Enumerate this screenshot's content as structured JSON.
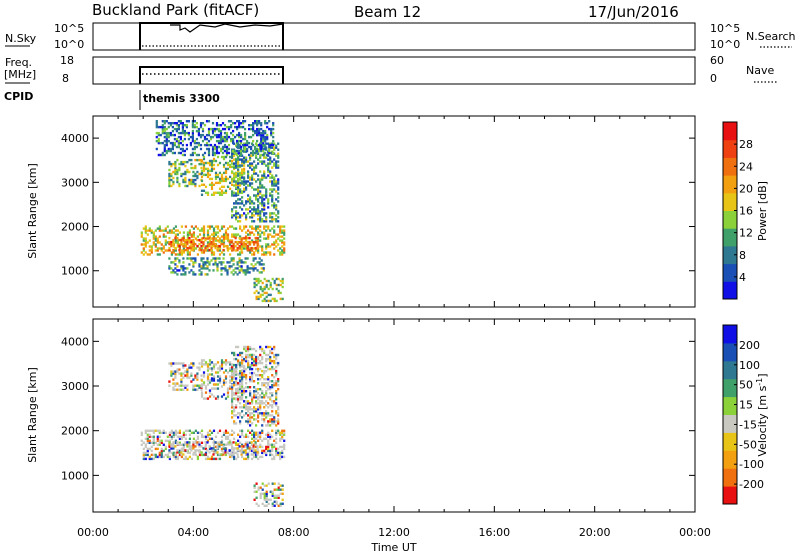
{
  "header": {
    "title": "Buckland Park (fitACF)",
    "beam": "Beam 12",
    "date": "17/Jun/2016"
  },
  "noise_panel": {
    "left_label": "N.Sky",
    "right_label": "N.Search",
    "left_ticks": [
      "10^5",
      "10^0"
    ],
    "right_ticks": [
      "10^5",
      "10^0"
    ]
  },
  "freq_panel": {
    "left_label_1": "Freq.",
    "left_label_2": "[MHz]",
    "right_label": "Nave",
    "left_ticks": [
      "18",
      "8"
    ],
    "right_ticks": [
      "60",
      "0"
    ]
  },
  "cpid": {
    "label": "CPID",
    "value": "themis 3300"
  },
  "chart_data": [
    {
      "type": "heatmap",
      "name": "power",
      "ylabel": "Slant Range [km]",
      "ylim": [
        180,
        4500
      ],
      "yticks": [
        1000,
        2000,
        3000,
        4000
      ],
      "xlim": [
        0,
        24
      ],
      "colorbar": {
        "label": "Power [dB]",
        "ticks": [
          "4",
          "8",
          "12",
          "16",
          "20",
          "24",
          "28"
        ],
        "colors": [
          "#1010e6",
          "#1a4fb5",
          "#2f7891",
          "#3fa06a",
          "#8ad13a",
          "#e8c416",
          "#f2a010",
          "#f07010",
          "#ee4010",
          "#e81010"
        ]
      },
      "echo_regions": [
        {
          "t": [
            1.9,
            7.6
          ],
          "r": [
            1350,
            2000
          ],
          "level": 0.55
        },
        {
          "t": [
            3.0,
            6.6
          ],
          "r": [
            1450,
            1750
          ],
          "level": 0.75
        },
        {
          "t": [
            3.0,
            4.3
          ],
          "r": [
            2900,
            3500
          ],
          "level": 0.4
        },
        {
          "t": [
            4.3,
            6.0
          ],
          "r": [
            2700,
            3600
          ],
          "level": 0.45
        },
        {
          "t": [
            5.5,
            7.4
          ],
          "r": [
            2100,
            3900
          ],
          "level": 0.3
        },
        {
          "t": [
            6.4,
            7.6
          ],
          "r": [
            300,
            800
          ],
          "level": 0.45
        },
        {
          "t": [
            3.0,
            6.8
          ],
          "r": [
            900,
            1300
          ],
          "level": 0.3
        },
        {
          "t": [
            2.5,
            7.2
          ],
          "r": [
            3600,
            4400
          ],
          "level": 0.2
        }
      ]
    },
    {
      "type": "heatmap",
      "name": "velocity",
      "ylabel": "Slant Range [km]",
      "xlabel": "Time UT",
      "ylim": [
        180,
        4500
      ],
      "yticks": [
        1000,
        2000,
        3000,
        4000
      ],
      "xlim": [
        0,
        24
      ],
      "xticks": [
        "00:00",
        "04:00",
        "08:00",
        "12:00",
        "16:00",
        "20:00",
        "00:00"
      ],
      "colorbar": {
        "label": "Velocity [m s^-1]",
        "ticks": [
          "200",
          "100",
          "50",
          "15",
          "-15",
          "-50",
          "-100",
          "-200"
        ],
        "colors": [
          "#1010e6",
          "#1a4fb5",
          "#2f7891",
          "#3fa06a",
          "#8ad13a",
          "#c8c8c0",
          "#e8c416",
          "#f2a010",
          "#f07010",
          "#e81010"
        ]
      },
      "echo_regions": [
        {
          "t": [
            1.9,
            7.6
          ],
          "r": [
            1350,
            2000
          ],
          "level": 0.5
        },
        {
          "t": [
            3.0,
            6.6
          ],
          "r": [
            1450,
            1750
          ],
          "level": 0.5
        },
        {
          "t": [
            3.0,
            4.3
          ],
          "r": [
            2900,
            3500
          ],
          "level": 0.5
        },
        {
          "t": [
            4.3,
            6.0
          ],
          "r": [
            2700,
            3600
          ],
          "level": 0.5
        },
        {
          "t": [
            5.5,
            7.4
          ],
          "r": [
            2100,
            3900
          ],
          "level": 0.5
        },
        {
          "t": [
            6.4,
            7.6
          ],
          "r": [
            300,
            800
          ],
          "level": 0.5
        }
      ]
    }
  ]
}
